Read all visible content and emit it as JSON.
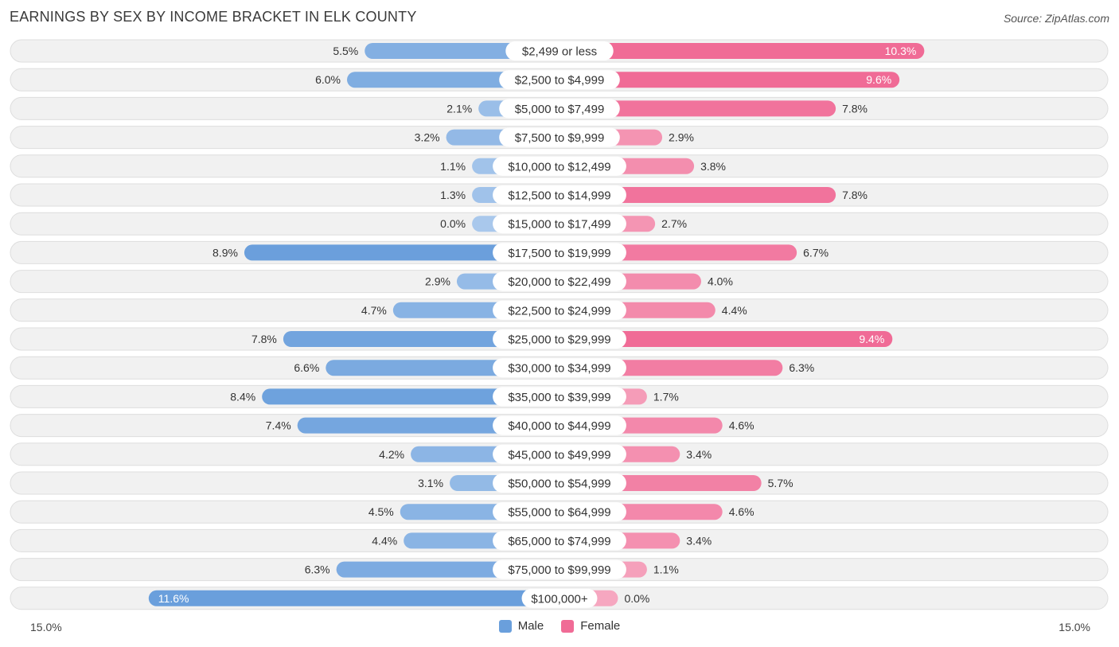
{
  "header": {
    "title": "EARNINGS BY SEX BY INCOME BRACKET IN ELK COUNTY",
    "source": "Source: ZipAtlas.com"
  },
  "colors": {
    "male": "#6a9fdc",
    "male_light": "#a9c8ec",
    "female": "#f06b96",
    "female_light": "#f6a7c0"
  },
  "chart_data": {
    "type": "bar",
    "orientation": "diverging-horizontal",
    "title": "EARNINGS BY SEX BY INCOME BRACKET IN ELK COUNTY",
    "categories": [
      "$2,499 or less",
      "$2,500 to $4,999",
      "$5,000 to $7,499",
      "$7,500 to $9,999",
      "$10,000 to $12,499",
      "$12,500 to $14,999",
      "$15,000 to $17,499",
      "$17,500 to $19,999",
      "$20,000 to $22,499",
      "$22,500 to $24,999",
      "$25,000 to $29,999",
      "$30,000 to $34,999",
      "$35,000 to $39,999",
      "$40,000 to $44,999",
      "$45,000 to $49,999",
      "$50,000 to $54,999",
      "$55,000 to $64,999",
      "$65,000 to $74,999",
      "$75,000 to $99,999",
      "$100,000+"
    ],
    "series": [
      {
        "name": "Male",
        "values": [
          5.5,
          6.0,
          2.1,
          3.2,
          1.1,
          1.3,
          0.0,
          8.9,
          2.9,
          4.7,
          7.8,
          6.6,
          8.4,
          7.4,
          4.2,
          3.1,
          4.5,
          4.4,
          6.3,
          11.6
        ],
        "labels": [
          "5.5%",
          "6.0%",
          "2.1%",
          "3.2%",
          "1.1%",
          "1.3%",
          "0.0%",
          "8.9%",
          "2.9%",
          "4.7%",
          "7.8%",
          "6.6%",
          "8.4%",
          "7.4%",
          "4.2%",
          "3.1%",
          "4.5%",
          "4.4%",
          "6.3%",
          "11.6%"
        ]
      },
      {
        "name": "Female",
        "values": [
          10.3,
          9.6,
          7.8,
          2.9,
          3.8,
          7.8,
          2.7,
          6.7,
          4.0,
          4.4,
          9.4,
          6.3,
          1.7,
          4.6,
          3.4,
          5.7,
          4.6,
          3.4,
          1.1,
          0.0
        ],
        "labels": [
          "10.3%",
          "9.6%",
          "7.8%",
          "2.9%",
          "3.8%",
          "7.8%",
          "2.7%",
          "6.7%",
          "4.0%",
          "4.4%",
          "9.4%",
          "6.3%",
          "1.7%",
          "4.6%",
          "3.4%",
          "5.7%",
          "4.6%",
          "3.4%",
          "1.1%",
          "0.0%"
        ]
      }
    ],
    "xlim": [
      -15.0,
      15.0
    ],
    "axis_labels": {
      "left": "15.0%",
      "right": "15.0%"
    },
    "legend": [
      "Male",
      "Female"
    ],
    "legend_position": "bottom-center"
  }
}
